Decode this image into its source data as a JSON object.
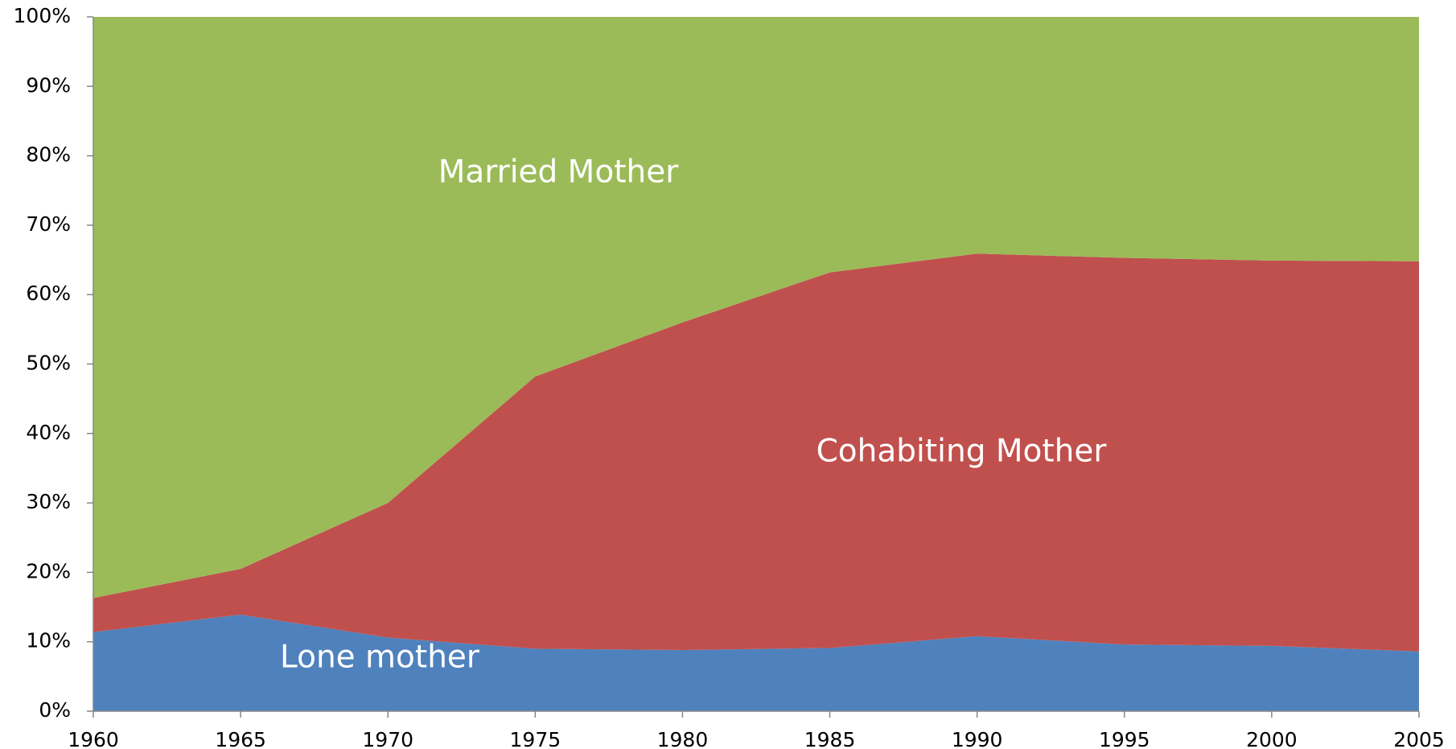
{
  "chart_data": {
    "type": "stacked_area",
    "x": [
      1960,
      1965,
      1970,
      1975,
      1980,
      1985,
      1990,
      1995,
      2000,
      2005
    ],
    "series": [
      {
        "name": "Lone mother",
        "color": "#4f81bd",
        "values": [
          11.4,
          13.9,
          10.6,
          9.0,
          8.8,
          9.1,
          10.8,
          9.6,
          9.4,
          8.6
        ]
      },
      {
        "name": "Cohabiting Mother",
        "color": "#c0504d",
        "values": [
          4.9,
          6.6,
          19.4,
          39.2,
          47.2,
          54.1,
          55.1,
          55.7,
          55.5,
          56.2
        ]
      },
      {
        "name": "Married Mother",
        "color": "#9bbb59",
        "values": [
          83.7,
          79.5,
          70.0,
          51.8,
          44.0,
          36.8,
          34.1,
          34.7,
          35.1,
          35.2
        ]
      }
    ],
    "xlim": [
      1960,
      2005
    ],
    "xticks": [
      1960,
      1965,
      1970,
      1975,
      1980,
      1985,
      1990,
      1995,
      2000,
      2005
    ],
    "ylim": [
      0,
      100
    ],
    "yticks": [
      {
        "value": 0,
        "label": "0%"
      },
      {
        "value": 10,
        "label": "10%"
      },
      {
        "value": 20,
        "label": "20%"
      },
      {
        "value": 30,
        "label": "30%"
      },
      {
        "value": 40,
        "label": "40%"
      },
      {
        "value": 50,
        "label": "50%"
      },
      {
        "value": 60,
        "label": "60%"
      },
      {
        "value": 70,
        "label": "70%"
      },
      {
        "value": 80,
        "label": "80%"
      },
      {
        "value": 90,
        "label": "90%"
      },
      {
        "value": 100,
        "label": "100%"
      }
    ],
    "grid": false
  }
}
